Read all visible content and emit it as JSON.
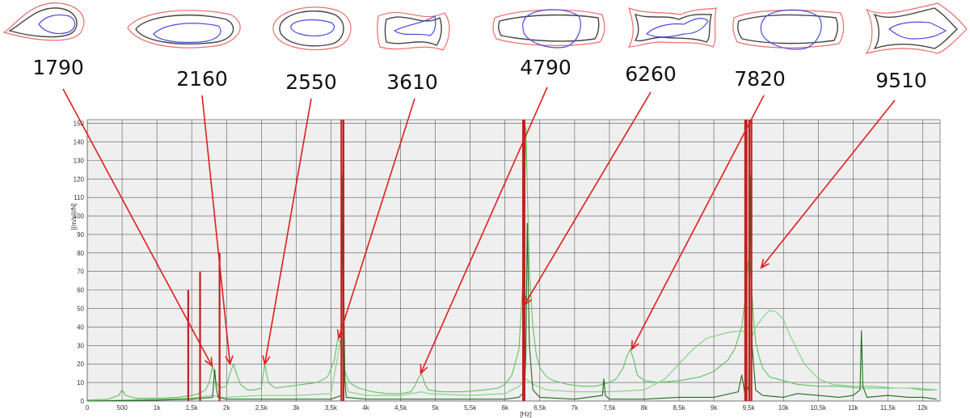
{
  "chart_data": {
    "type": "line",
    "xlabel": "[Hz]",
    "ylabel": "[(m/s²)/N]",
    "xlim": [
      0,
      12250
    ],
    "ylim": [
      0,
      152
    ],
    "grid": true,
    "x_ticks": [
      {
        "value": 0,
        "label": "0"
      },
      {
        "value": 500,
        "label": "500"
      },
      {
        "value": 1000,
        "label": "1k"
      },
      {
        "value": 1500,
        "label": "1,5k"
      },
      {
        "value": 2000,
        "label": "2k"
      },
      {
        "value": 2500,
        "label": "2,5k"
      },
      {
        "value": 3000,
        "label": "3k"
      },
      {
        "value": 3500,
        "label": "3,5k"
      },
      {
        "value": 4000,
        "label": "4k"
      },
      {
        "value": 4500,
        "label": "4,5k"
      },
      {
        "value": 5000,
        "label": "5k"
      },
      {
        "value": 5500,
        "label": "5,5k"
      },
      {
        "value": 6000,
        "label": "6k"
      },
      {
        "value": 6500,
        "label": "6,5k"
      },
      {
        "value": 7000,
        "label": "7k"
      },
      {
        "value": 7500,
        "label": "7,5k"
      },
      {
        "value": 8000,
        "label": "8k"
      },
      {
        "value": 8500,
        "label": "8,5k"
      },
      {
        "value": 9000,
        "label": "9k"
      },
      {
        "value": 9500,
        "label": "9,5k"
      },
      {
        "value": 10000,
        "label": "10k"
      },
      {
        "value": 10500,
        "label": "10,5k"
      },
      {
        "value": 11000,
        "label": "11k"
      },
      {
        "value": 11500,
        "label": "11,5k"
      },
      {
        "value": 12000,
        "label": "12k"
      }
    ],
    "y_ticks": [
      {
        "value": 0,
        "label": "0"
      },
      {
        "value": 10,
        "label": "10"
      },
      {
        "value": 20,
        "label": "20"
      },
      {
        "value": 30,
        "label": "30"
      },
      {
        "value": 40,
        "label": "40"
      },
      {
        "value": 50,
        "label": "50"
      },
      {
        "value": 60,
        "label": "60"
      },
      {
        "value": 70,
        "label": "70"
      },
      {
        "value": 80,
        "label": "80"
      },
      {
        "value": 90,
        "label": "90"
      },
      {
        "value": 100,
        "label": "100"
      },
      {
        "value": 110,
        "label": "110"
      },
      {
        "value": 120,
        "label": "120"
      },
      {
        "value": 130,
        "label": "130"
      },
      {
        "value": 140,
        "label": "140"
      },
      {
        "value": 150,
        "label": "150"
      }
    ],
    "series": [
      {
        "color": "#5fc25f",
        "x": [
          0,
          300,
          450,
          500,
          550,
          700,
          1000,
          1300,
          1500,
          1600,
          1700,
          1750,
          1800,
          1850,
          1900,
          2000,
          2050,
          2100,
          2150,
          2200,
          2300,
          2400,
          2500,
          2550,
          2600,
          2700,
          2900,
          3100,
          3300,
          3450,
          3550,
          3600,
          3650,
          3700,
          3750,
          3800,
          3900,
          4100,
          4300,
          4500,
          4650,
          4700,
          4750,
          4800,
          4850,
          4900,
          5100,
          5400,
          5700,
          5900,
          6000,
          6100,
          6200,
          6250,
          6280,
          6300,
          6320,
          6350,
          6400,
          6450,
          6500,
          6600,
          6700,
          6900,
          7100,
          7300,
          7400,
          7500,
          7600,
          7700,
          7750,
          7800,
          7850,
          7900,
          8000,
          8200,
          8500,
          8800,
          9000,
          9200,
          9300,
          9400,
          9450,
          9480,
          9510,
          9540,
          9570,
          9600,
          9650,
          9700,
          9800,
          10000,
          10200,
          10500,
          10800,
          11100,
          11400,
          11600,
          11800,
          12000,
          12200
        ],
        "y": [
          0.5,
          1,
          3,
          6,
          3,
          1.5,
          1.5,
          2,
          3,
          4,
          6,
          10,
          19,
          10,
          7,
          8,
          15,
          20,
          14,
          9,
          6,
          6,
          7,
          20,
          10,
          7,
          8,
          9,
          10,
          13,
          22,
          34,
          30,
          16,
          11,
          9,
          7,
          5,
          4,
          4,
          5,
          8,
          12,
          15,
          9,
          6,
          5,
          5,
          6,
          7,
          9,
          14,
          28,
          60,
          105,
          148,
          115,
          70,
          40,
          25,
          18,
          13,
          11,
          9,
          8,
          8,
          9,
          10,
          12,
          18,
          24,
          28,
          22,
          14,
          11,
          10,
          11,
          13,
          16,
          22,
          28,
          40,
          55,
          70,
          80,
          62,
          45,
          32,
          24,
          18,
          13,
          11,
          9,
          8,
          8,
          7,
          7,
          7,
          7,
          6,
          6
        ]
      },
      {
        "color": "#7ad47a",
        "x": [
          0,
          500,
          1000,
          1500,
          1800,
          1900,
          2000,
          2500,
          3000,
          3500,
          3650,
          3700,
          3750,
          4000,
          4500,
          4800,
          4900,
          5500,
          6000,
          6200,
          6300,
          6400,
          6600,
          7000,
          7500,
          8000,
          8300,
          8500,
          8700,
          8900,
          9000,
          9200,
          9400,
          9500,
          9550,
          9600,
          9700,
          9800,
          9900,
          10000,
          10100,
          10300,
          10500,
          10700,
          11000,
          11300,
          11600,
          11900,
          12200
        ],
        "y": [
          0,
          0.5,
          1,
          1.5,
          3,
          2,
          2,
          3,
          3,
          4,
          35,
          12,
          5,
          3,
          3,
          5,
          4,
          3,
          4,
          8,
          12,
          9,
          6,
          5,
          5,
          6,
          12,
          20,
          28,
          34,
          35,
          37,
          38,
          36,
          35,
          40,
          45,
          49,
          48,
          44,
          35,
          20,
          12,
          9,
          8,
          8,
          7,
          7,
          6
        ]
      },
      {
        "color": "#1f6b1f",
        "x": [
          0,
          1000,
          1500,
          1800,
          1830,
          1850,
          1880,
          2000,
          2500,
          3000,
          3500,
          3650,
          3670,
          3690,
          3700,
          3720,
          4000,
          4500,
          5000,
          5500,
          6000,
          6200,
          6280,
          6300,
          6320,
          6350,
          6400,
          6500,
          7000,
          7400,
          7420,
          7440,
          7500,
          8000,
          8500,
          9000,
          9350,
          9400,
          9450,
          9500,
          9530,
          9550,
          9600,
          9700,
          10000,
          10200,
          10500,
          10800,
          11000,
          11100,
          11120,
          11140,
          11200,
          11500,
          11800,
          12000,
          12200
        ],
        "y": [
          0,
          0.5,
          1,
          2,
          17,
          8,
          2,
          1,
          1,
          1,
          1,
          3,
          122,
          40,
          10,
          2,
          1,
          1,
          1,
          1,
          1,
          2,
          5,
          26,
          96,
          30,
          6,
          2,
          1,
          3,
          12,
          3,
          1,
          1,
          2,
          2,
          5,
          14,
          3,
          8,
          122,
          30,
          6,
          3,
          2,
          4,
          3,
          2,
          3,
          6,
          38,
          8,
          2,
          3,
          2,
          2,
          1
        ]
      }
    ],
    "markers": [
      1450,
      1620,
      1900,
      3650,
      3680,
      6260,
      6280,
      9450,
      9470,
      9510,
      9540
    ],
    "marker_color": "#c21f1f",
    "annotations": [
      {
        "label": "1790",
        "target_x": 1790,
        "target_y": 19
      },
      {
        "label": "2160",
        "target_x": 2050,
        "target_y": 20
      },
      {
        "label": "2550",
        "target_x": 2550,
        "target_y": 20
      },
      {
        "label": "3610",
        "target_x": 3610,
        "target_y": 34
      },
      {
        "label": "4790",
        "target_x": 4790,
        "target_y": 15
      },
      {
        "label": "6260",
        "target_x": 6280,
        "target_y": 52
      },
      {
        "label": "7820",
        "target_x": 7820,
        "target_y": 28
      },
      {
        "label": "9510",
        "target_x": 9680,
        "target_y": 72
      }
    ],
    "mode_shapes_count": 8,
    "colors": {
      "arrow": "#e01d1d",
      "shape_outer": "#ef6b6b",
      "shape_mid": "#444444",
      "shape_inner": "#4a4ae0",
      "plot_bg": "#efefef",
      "grid": "#5a5a5a"
    }
  }
}
